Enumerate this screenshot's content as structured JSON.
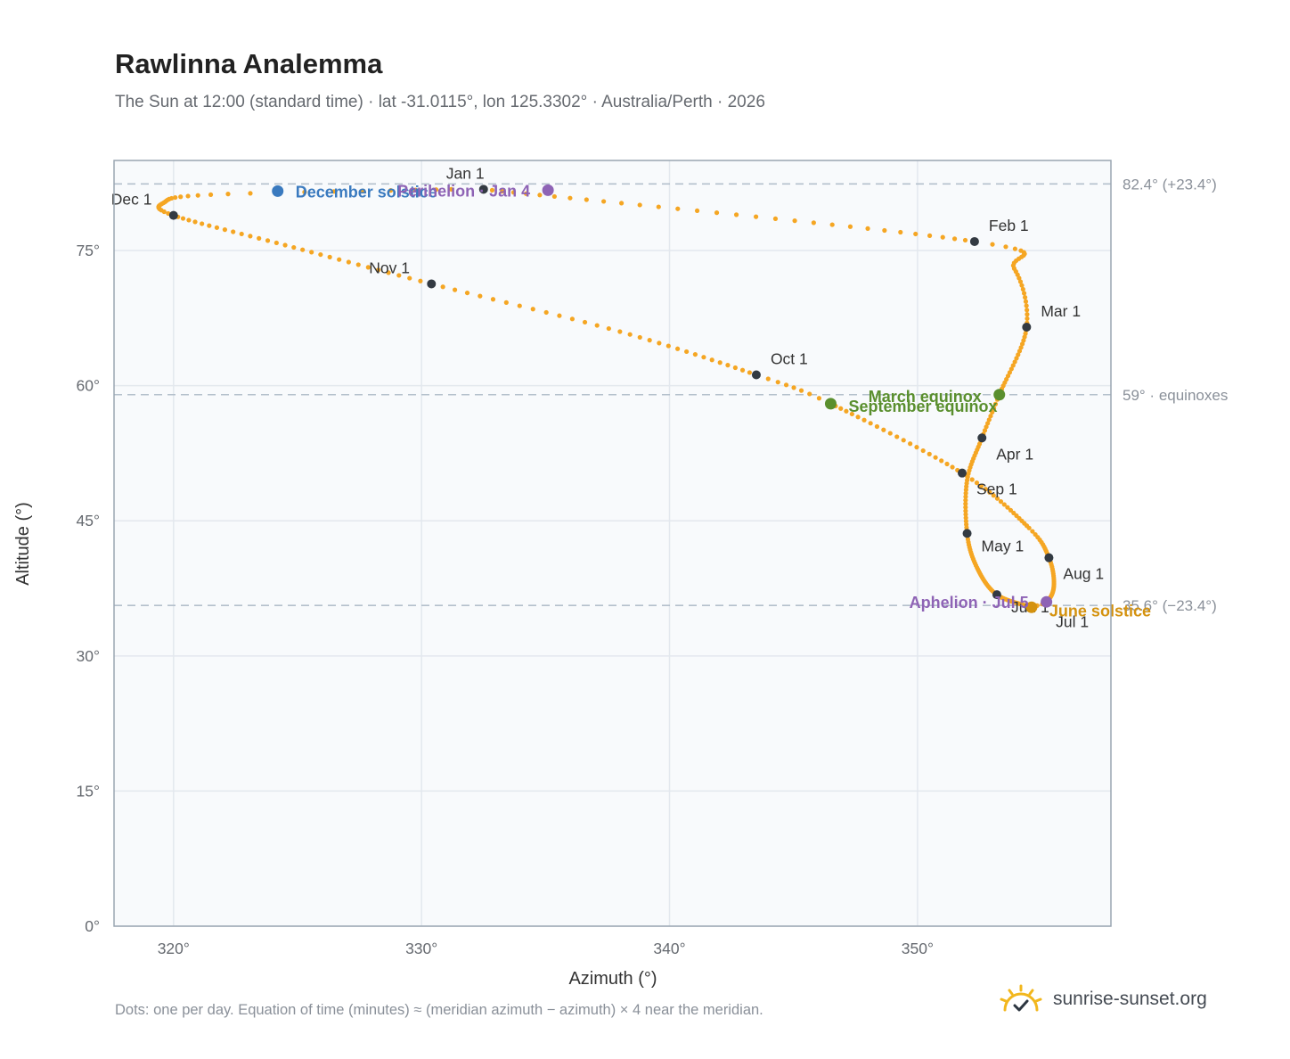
{
  "title": "Rawlinna Analemma",
  "subtitle": "The Sun at 12:00 (standard time) · lat -31.0115°, lon 125.3302° · Australia/Perth · 2026",
  "footer_note": "Dots: one per day. Equation of time (minutes) ≈ (meridian azimuth − azimuth) × 4 near the meridian.",
  "brand": {
    "text": "sunrise-sunset.org",
    "icon": "sun-checkmark-icon",
    "color": "#f2b71d"
  },
  "colors": {
    "path": "#f5a623",
    "month_marker": "#333a42",
    "december_solstice": "#3a7abf",
    "june_solstice": "#d4920f",
    "equinox": "#5a8f2e",
    "perihelion_aphelion": "#8e63b5",
    "reference_line": "#b4c0cc",
    "plot_background": "#f8fafc",
    "plot_border": "#9aa6b2",
    "grid": "#e3e8ee"
  },
  "chart_data": {
    "type": "scatter",
    "title": "Rawlinna Analemma",
    "xlabel": "Azimuth (°)",
    "ylabel": "Altitude (°)",
    "xlim": [
      317.6,
      357.8
    ],
    "ylim": [
      0,
      85
    ],
    "x_ticks": [
      320,
      330,
      340,
      350
    ],
    "x_tick_labels": [
      "320°",
      "330°",
      "340°",
      "350°"
    ],
    "y_ticks": [
      0,
      15,
      30,
      45,
      60,
      75
    ],
    "y_tick_labels": [
      "0°",
      "15°",
      "30°",
      "45°",
      "60°",
      "75°"
    ],
    "grid": true,
    "reference_lines": [
      {
        "y": 82.4,
        "label": "82.4° (+23.4°)"
      },
      {
        "y": 59.0,
        "label": "59° · equinoxes"
      },
      {
        "y": 35.6,
        "label": "35.6° (−23.4°)"
      }
    ],
    "month_markers": [
      {
        "label": "Jan 1",
        "x": 332.5,
        "y": 81.8
      },
      {
        "label": "Feb 1",
        "x": 352.3,
        "y": 76.0
      },
      {
        "label": "Mar 1",
        "x": 354.4,
        "y": 66.5
      },
      {
        "label": "Apr 1",
        "x": 352.6,
        "y": 54.2
      },
      {
        "label": "May 1",
        "x": 352.0,
        "y": 43.6
      },
      {
        "label": "Jun 1",
        "x": 353.2,
        "y": 36.8
      },
      {
        "label": "Jul 1",
        "x": 354.5,
        "y": 35.4
      },
      {
        "label": "Aug 1",
        "x": 355.3,
        "y": 40.9
      },
      {
        "label": "Sep 1",
        "x": 351.8,
        "y": 50.3
      },
      {
        "label": "Oct 1",
        "x": 343.5,
        "y": 61.2
      },
      {
        "label": "Nov 1",
        "x": 330.4,
        "y": 71.3
      },
      {
        "label": "Dec 1",
        "x": 320.0,
        "y": 78.9
      }
    ],
    "events": [
      {
        "label": "December solstice",
        "x": 324.2,
        "y": 81.6,
        "color": "#3a7abf"
      },
      {
        "label": "Perihelion · Jan 4",
        "x": 335.1,
        "y": 81.7,
        "color": "#8e63b5"
      },
      {
        "label": "March equinox",
        "x": 353.3,
        "y": 59.0,
        "color": "#5a8f2e"
      },
      {
        "label": "September equinox",
        "x": 346.5,
        "y": 58.0,
        "color": "#5a8f2e"
      },
      {
        "label": "June solstice",
        "x": 354.6,
        "y": 35.4,
        "color": "#d4920f"
      },
      {
        "label": "Aphelion · Jul 5",
        "x": 355.2,
        "y": 36.0,
        "color": "#8e63b5"
      }
    ],
    "series": [
      {
        "values_note": "",
        "anchors": [
          [
            1,
            332.5,
            81.8
          ],
          [
            32,
            352.3,
            76.0
          ],
          [
            45,
            353.9,
            73.0
          ],
          [
            60,
            354.4,
            66.5
          ],
          [
            80,
            353.3,
            59.0
          ],
          [
            91,
            352.6,
            54.2
          ],
          [
            105,
            352.0,
            49.5
          ],
          [
            121,
            352.0,
            43.6
          ],
          [
            135,
            352.4,
            39.8
          ],
          [
            152,
            353.2,
            36.8
          ],
          [
            172,
            354.6,
            35.4
          ],
          [
            182,
            354.5,
            35.4
          ],
          [
            186,
            355.2,
            36.0
          ],
          [
            200,
            355.5,
            37.8
          ],
          [
            213,
            355.3,
            40.9
          ],
          [
            225,
            354.5,
            44.2
          ],
          [
            244,
            351.8,
            50.3
          ],
          [
            266,
            346.5,
            58.0
          ],
          [
            274,
            343.5,
            61.2
          ],
          [
            290,
            338.0,
            66.0
          ],
          [
            305,
            330.4,
            71.3
          ],
          [
            320,
            324.5,
            75.6
          ],
          [
            335,
            320.0,
            78.9
          ],
          [
            345,
            319.6,
            80.3
          ],
          [
            355,
            321.5,
            81.2
          ],
          [
            365,
            331.2,
            81.8
          ]
        ]
      }
    ]
  }
}
